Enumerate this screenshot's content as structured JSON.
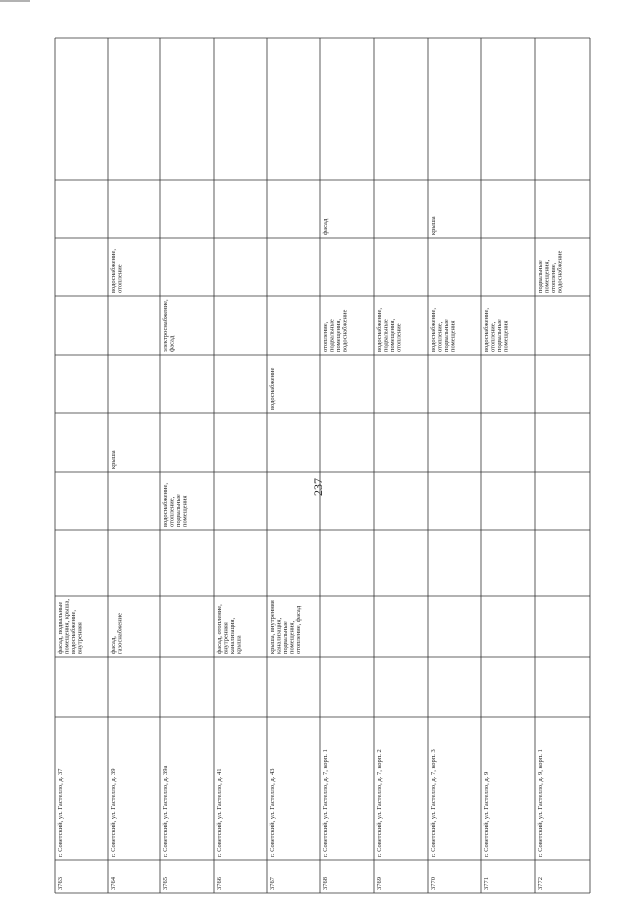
{
  "page_number": "237",
  "table": {
    "rows": [
      {
        "number": "3763",
        "address": "г. Советский, ул. Гастелло, д. 37",
        "cells": [
          null,
          "фасад, подвальные помещения, крыша, водоснабжение, внутренняя",
          null,
          null,
          null,
          null,
          null,
          null,
          null,
          null
        ]
      },
      {
        "number": "3764",
        "address": "г. Советский, ул. Гастелло, д. 39",
        "cells": [
          null,
          "фасад, газоснабжение",
          null,
          null,
          "крыша",
          null,
          null,
          "водоснабжение, отопление",
          null,
          null
        ]
      },
      {
        "number": "3765",
        "address": "г. Советский, ул. Гастелло, д. 39а",
        "cells": [
          null,
          null,
          null,
          "водоснабжение, отопление, подвальные помещения",
          null,
          null,
          "электроснабжение, фасад",
          null,
          null,
          null
        ]
      },
      {
        "number": "3766",
        "address": "г. Советский, ул. Гастелло, д. 41",
        "cells": [
          null,
          "фасад, отопление, внутренняя канализация, крыша",
          null,
          null,
          null,
          null,
          null,
          null,
          null,
          null
        ]
      },
      {
        "number": "3767",
        "address": "г. Советский, ул. Гастелло, д. 43",
        "cells": [
          null,
          "крыша, внутренняя канализация, подвальные помещения, отопление, фасад",
          null,
          null,
          null,
          "водоснабжение",
          null,
          null,
          null,
          null
        ]
      },
      {
        "number": "3768",
        "address": "г. Советский, ул. Гастелло, д. 7, корп. 1",
        "cells": [
          null,
          null,
          null,
          null,
          null,
          null,
          "отопление, подвальные помещения, водоснабжение",
          null,
          "фасад",
          null
        ]
      },
      {
        "number": "3769",
        "address": "г. Советский, ул. Гастелло, д. 7, корп. 2",
        "cells": [
          null,
          null,
          null,
          null,
          null,
          null,
          "водоснабжение, подвальные помещения, отопление",
          null,
          null,
          null
        ]
      },
      {
        "number": "3770",
        "address": "г. Советский, ул. Гастелло, д. 7, корп. 3",
        "cells": [
          null,
          null,
          null,
          null,
          null,
          null,
          "водоснабжение, отопление, подвальные помещения",
          null,
          "крыша",
          null
        ]
      },
      {
        "number": "3771",
        "address": "г. Советский, ул. Гастелло, д. 9",
        "cells": [
          null,
          null,
          null,
          null,
          null,
          null,
          "водоснабжение, отопление, подвальные помещения",
          null,
          null,
          null
        ]
      },
      {
        "number": "3772",
        "address": "г. Советский, ул. Гастелло, д. 9, корп. 1",
        "cells": [
          null,
          null,
          null,
          null,
          null,
          null,
          null,
          "подвальные помещения, отопление, водоснабжение",
          null,
          null
        ]
      }
    ]
  }
}
